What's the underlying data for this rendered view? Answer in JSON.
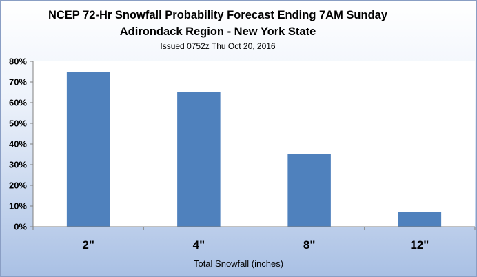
{
  "chart_data": {
    "type": "bar",
    "title": "NCEP 72-Hr Snowfall Probability Forecast Ending 7AM Sunday",
    "subtitle": "Adirondack Region - New York State",
    "issued": "Issued 0752z Thu Oct  20, 2016",
    "xlabel": "Total Snowfall (inches)",
    "ylabel": "",
    "categories": [
      "2\"",
      "4\"",
      "8\"",
      "12\""
    ],
    "values": [
      75,
      65,
      35,
      7
    ],
    "ylim": [
      0,
      80
    ],
    "yticks": [
      0,
      10,
      20,
      30,
      40,
      50,
      60,
      70,
      80
    ],
    "ytick_labels": [
      "0%",
      "10%",
      "20%",
      "30%",
      "40%",
      "50%",
      "60%",
      "70%",
      "80%"
    ],
    "bar_color": "#4f81bd",
    "grid": false,
    "legend": "none"
  }
}
